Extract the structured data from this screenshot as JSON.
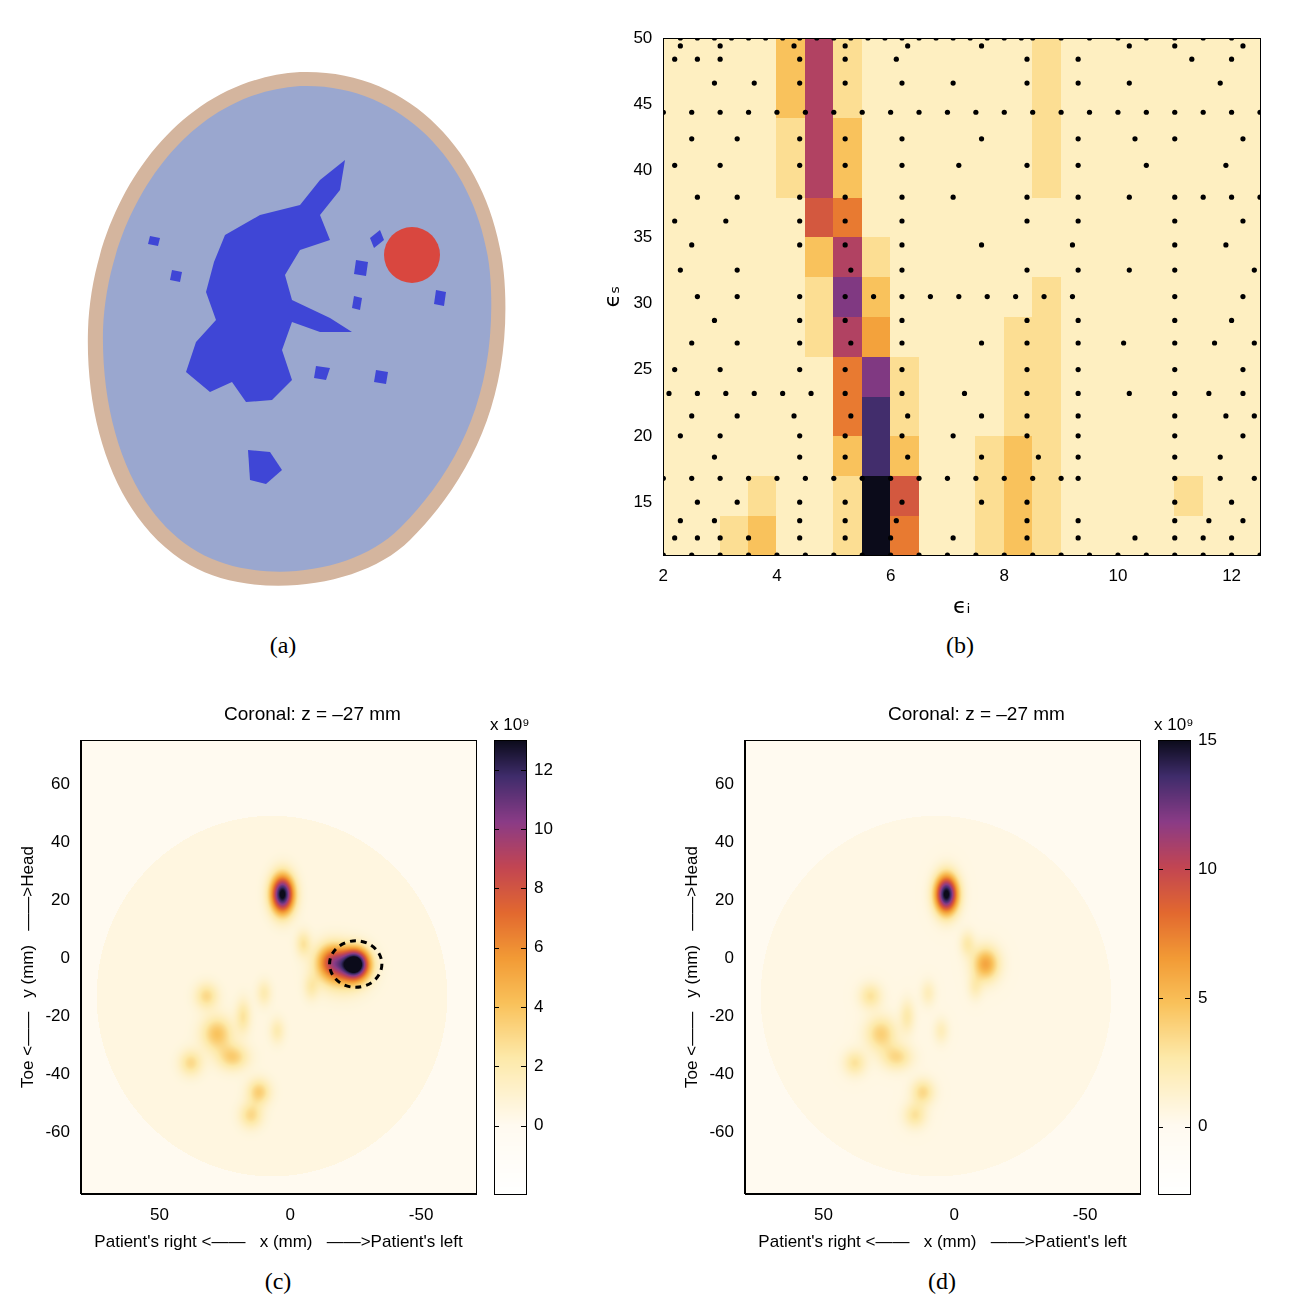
{
  "chart_data": [
    {
      "panel": "(a)",
      "type": "segmentation"
    },
    {
      "panel": "(b)",
      "type": "heatmap",
      "x_label": "ϵᵢ",
      "y_label": "ϵₛ",
      "xlim": [
        2,
        12.5
      ],
      "ylim": [
        11,
        50
      ],
      "xticks": [
        2,
        4,
        6,
        8,
        10,
        12
      ],
      "yticks": [
        15,
        20,
        25,
        30,
        35,
        40,
        45,
        50
      ],
      "heatmap": {
        "x_edges": [
          2,
          2.5,
          3,
          3.5,
          4,
          4.5,
          5,
          5.5,
          6,
          6.5,
          7,
          7.5,
          8,
          8.5,
          9,
          9.5,
          10,
          10.5,
          11,
          11.5,
          12,
          12.5
        ],
        "y_edges": [
          11,
          14,
          17,
          20,
          23,
          26,
          29,
          32,
          35,
          38,
          41,
          44,
          47,
          50
        ],
        "clim": [
          -2,
          10
        ],
        "cells": [
          [
            1,
            1,
            2,
            3,
            1,
            1,
            2,
            10,
            5,
            1,
            1,
            2,
            3,
            2,
            1,
            1,
            1,
            1,
            1,
            1,
            1
          ],
          [
            1,
            1,
            1,
            2,
            1,
            1,
            2,
            10,
            6,
            1,
            1,
            2,
            3,
            2,
            1,
            1,
            1,
            1,
            2,
            1,
            1
          ],
          [
            1,
            1,
            1,
            1,
            1,
            1,
            3,
            9,
            3,
            1,
            1,
            2,
            3,
            2,
            1,
            1,
            1,
            1,
            1,
            1,
            1
          ],
          [
            1,
            1,
            1,
            1,
            1,
            1,
            5,
            9,
            2,
            1,
            1,
            1,
            2,
            2,
            1,
            1,
            1,
            1,
            1,
            1,
            1
          ],
          [
            1,
            1,
            1,
            1,
            1,
            1,
            5,
            8,
            2,
            1,
            1,
            1,
            2,
            2,
            1,
            1,
            1,
            1,
            1,
            1,
            1
          ],
          [
            1,
            1,
            1,
            1,
            1,
            2,
            7,
            4,
            1,
            1,
            1,
            1,
            2,
            2,
            1,
            1,
            1,
            1,
            1,
            1,
            1
          ],
          [
            1,
            1,
            1,
            1,
            1,
            2,
            8,
            3,
            1,
            1,
            1,
            1,
            1,
            2,
            1,
            1,
            1,
            1,
            1,
            1,
            1
          ],
          [
            1,
            1,
            1,
            1,
            1,
            3,
            7,
            2,
            1,
            1,
            1,
            1,
            1,
            1,
            1,
            1,
            1,
            1,
            1,
            1,
            1
          ],
          [
            1,
            1,
            1,
            1,
            1,
            6,
            5,
            1,
            1,
            1,
            1,
            1,
            1,
            1,
            1,
            1,
            1,
            1,
            1,
            1,
            1
          ],
          [
            1,
            1,
            1,
            1,
            2,
            7,
            3,
            1,
            1,
            1,
            1,
            1,
            1,
            2,
            1,
            1,
            1,
            1,
            1,
            1,
            1
          ],
          [
            1,
            1,
            1,
            1,
            2,
            7,
            3,
            1,
            1,
            1,
            1,
            1,
            1,
            2,
            1,
            1,
            1,
            1,
            1,
            1,
            1
          ],
          [
            1,
            1,
            1,
            1,
            3,
            7,
            2,
            1,
            1,
            1,
            1,
            1,
            1,
            2,
            1,
            1,
            1,
            1,
            1,
            1,
            1
          ],
          [
            1,
            1,
            1,
            1,
            3,
            7,
            2,
            1,
            1,
            1,
            1,
            1,
            1,
            2,
            1,
            1,
            1,
            1,
            1,
            1,
            1
          ]
        ]
      },
      "points": {
        "marker": "circle",
        "color": "#000000",
        "rows": [
          {
            "y": 50,
            "x": [
              2.3,
              2.6,
              2.9,
              3.2,
              3.5,
              3.8,
              4.1,
              4.4,
              4.7,
              5.0,
              5.3,
              5.6,
              5.9,
              6.2,
              6.5,
              6.8,
              7.1,
              7.4,
              7.7,
              8.0,
              8.3,
              8.5,
              9.0,
              9.5,
              10.0,
              10.5,
              11.0,
              11.5,
              12.0
            ]
          },
          {
            "y": 49.4,
            "x": [
              2.3,
              3.0,
              4.3,
              5.2,
              6.3,
              7.6,
              10.2,
              11.0,
              12.2
            ]
          },
          {
            "y": 48.4,
            "x": [
              2.2,
              2.6,
              3.0,
              4.4,
              5.2,
              6.1,
              8.4,
              9.3,
              11.3,
              12.0
            ]
          },
          {
            "y": 46.6,
            "x": [
              2.9,
              3.6,
              4.4,
              5.2,
              6.2,
              7.1,
              8.4,
              9.3,
              10.2,
              11.8
            ]
          },
          {
            "y": 44.4,
            "x": [
              2.0,
              2.5,
              3.0,
              3.5,
              4.0,
              4.5,
              5.0,
              5.5,
              6.0,
              6.5,
              7.0,
              7.5,
              8.0,
              8.5,
              9.0,
              9.5,
              10.0,
              10.5,
              11.0,
              11.5,
              12.0,
              12.5
            ]
          },
          {
            "y": 42.4,
            "x": [
              2.5,
              3.3,
              4.4,
              5.2,
              6.2,
              7.6,
              9.3,
              10.3,
              11.0,
              12.2
            ]
          },
          {
            "y": 40.4,
            "x": [
              2.2,
              3.0,
              4.4,
              5.2,
              6.2,
              7.2,
              8.4,
              9.3,
              10.5,
              11.9
            ]
          },
          {
            "y": 38,
            "x": [
              2.6,
              3.3,
              4.4,
              5.2,
              6.2,
              7.1,
              8.4,
              9.3,
              10.2,
              11.0,
              11.5,
              12.0,
              12.5
            ]
          },
          {
            "y": 36.2,
            "x": [
              2.2,
              3.1,
              4.4,
              5.2,
              6.2,
              8.4,
              9.3,
              11.0,
              12.2
            ]
          },
          {
            "y": 34.4,
            "x": [
              2.5,
              4.4,
              5.2,
              6.2,
              7.6,
              9.2,
              11.0,
              11.9
            ]
          },
          {
            "y": 32.5,
            "x": [
              2.3,
              3.3,
              5.3,
              6.2,
              8.4,
              9.3,
              10.2,
              11.0,
              12.4
            ]
          },
          {
            "y": 30.5,
            "x": [
              2.6,
              3.3,
              4.4,
              5.2,
              5.7,
              6.2,
              6.7,
              7.2,
              7.7,
              8.2,
              8.7,
              9.2,
              11.0,
              12.2
            ]
          },
          {
            "y": 28.7,
            "x": [
              2.9,
              4.4,
              5.2,
              6.2,
              8.4,
              9.3,
              11.0,
              12.0
            ]
          },
          {
            "y": 27,
            "x": [
              2.5,
              3.3,
              4.4,
              5.3,
              6.2,
              7.6,
              8.4,
              9.3,
              10.1,
              11.0,
              11.7,
              12.4
            ]
          },
          {
            "y": 25,
            "x": [
              2.2,
              3.0,
              4.4,
              5.2,
              6.2,
              8.4,
              9.3,
              11.0,
              12.2
            ]
          },
          {
            "y": 23.2,
            "x": [
              2.1,
              2.6,
              3.1,
              3.6,
              4.1,
              4.6,
              5.2,
              6.2,
              7.3,
              8.4,
              9.3,
              10.2,
              11.0,
              11.6,
              12.2
            ]
          },
          {
            "y": 21.5,
            "x": [
              2.5,
              3.3,
              4.3,
              5.3,
              6.3,
              7.6,
              8.4,
              9.3,
              11.0,
              11.9,
              12.4
            ]
          },
          {
            "y": 20,
            "x": [
              2.3,
              3.0,
              4.4,
              5.2,
              6.2,
              7.1,
              8.4,
              9.3,
              11.0,
              12.2
            ]
          },
          {
            "y": 18.4,
            "x": [
              2.9,
              4.4,
              5.2,
              6.3,
              7.6,
              8.6,
              9.3,
              11.0,
              11.8
            ]
          },
          {
            "y": 16.8,
            "x": [
              2.0,
              2.5,
              3.0,
              3.5,
              4.0,
              4.5,
              5.0,
              5.5,
              6.0,
              6.5,
              7.0,
              7.5,
              8.0,
              8.5,
              9.0,
              9.3,
              11.0,
              11.8,
              12.4
            ]
          },
          {
            "y": 15,
            "x": [
              2.6,
              3.3,
              4.4,
              5.2,
              6.2,
              7.6,
              8.4,
              11.0,
              12.0
            ]
          },
          {
            "y": 13.6,
            "x": [
              2.3,
              2.9,
              4.4,
              5.2,
              6.1,
              8.4,
              9.3,
              11.0,
              11.6,
              12.2
            ]
          },
          {
            "y": 12.3,
            "x": [
              2.2,
              2.6,
              3.0,
              3.5,
              4.4,
              5.2,
              6.0,
              7.1,
              8.4,
              9.3,
              10.3,
              11.0,
              11.5,
              12.0
            ]
          },
          {
            "y": 11,
            "x": [
              2.0,
              2.5,
              3.0,
              3.5,
              4.0,
              4.5,
              5.0,
              5.5,
              6.0,
              6.5,
              7.0,
              7.5,
              8.0,
              8.5,
              9.0,
              9.5,
              10.0,
              10.5,
              11.0,
              11.5,
              12.0,
              12.5
            ]
          }
        ]
      }
    },
    {
      "panel": "(c)",
      "type": "image",
      "title": "Coronal: z = –27 mm",
      "x_label": "Patient's right <——   x (mm)   ——>Patient's left",
      "y_label": "Toe <——   y (mm)   ——>Head",
      "xlim": [
        80,
        -71
      ],
      "ylim": [
        -81,
        75
      ],
      "xticks": [
        50,
        0,
        -50
      ],
      "yticks": [
        -60,
        -40,
        -20,
        0,
        20,
        40,
        60
      ],
      "colorbar": {
        "lim": [
          -2.3,
          13
        ],
        "ticks": [
          0,
          2,
          4,
          6,
          8,
          10,
          12
        ],
        "label": "x 10⁹"
      },
      "region": {
        "x": 7,
        "y": -13,
        "rx": 67,
        "ry": 62,
        "value": 0.5
      },
      "blobs": [
        {
          "x": 3,
          "y": 22,
          "value": 13,
          "sx": 3,
          "sy": 4.5
        },
        {
          "x": -25,
          "y": -2,
          "value": 13,
          "sx": 3.5,
          "sy": 3.5
        },
        {
          "x": -16,
          "y": -1,
          "value": 6,
          "sx": 4,
          "sy": 4
        },
        {
          "x": -20,
          "y": -4,
          "value": 4,
          "sx": 6,
          "sy": 5
        },
        {
          "x": 32,
          "y": -13,
          "value": 2.5,
          "sx": 3,
          "sy": 3
        },
        {
          "x": 28,
          "y": -26,
          "value": 3.5,
          "sx": 4,
          "sy": 4
        },
        {
          "x": 22,
          "y": -34,
          "value": 3,
          "sx": 4,
          "sy": 3
        },
        {
          "x": 38,
          "y": -36,
          "value": 2.5,
          "sx": 3,
          "sy": 3
        },
        {
          "x": 12,
          "y": -46,
          "value": 3,
          "sx": 3,
          "sy": 3
        },
        {
          "x": 15,
          "y": -54,
          "value": 2.5,
          "sx": 3,
          "sy": 3
        },
        {
          "x": 18,
          "y": -20,
          "value": 2,
          "sx": 2,
          "sy": 4
        },
        {
          "x": 10,
          "y": -12,
          "value": 1.5,
          "sx": 2,
          "sy": 3
        },
        {
          "x": -5,
          "y": 5,
          "value": 2,
          "sx": 2,
          "sy": 3
        },
        {
          "x": -8,
          "y": -10,
          "value": 1.5,
          "sx": 2,
          "sy": 3
        },
        {
          "x": 5,
          "y": -25,
          "value": 1.5,
          "sx": 2,
          "sy": 3
        }
      ],
      "highlight": {
        "x": -25,
        "y": -2,
        "rx": 10,
        "ry": 8
      }
    },
    {
      "panel": "(d)",
      "type": "image",
      "title": "Coronal: z = –27 mm",
      "x_label": "Patient's right <——   x (mm)   ——>Patient's left",
      "y_label": "Toe <——   y (mm)   ——>Head",
      "xlim": [
        80,
        -71
      ],
      "ylim": [
        -81,
        75
      ],
      "xticks": [
        50,
        0,
        -50
      ],
      "yticks": [
        -60,
        -40,
        -20,
        0,
        20,
        40,
        60
      ],
      "colorbar": {
        "lim": [
          -2.6,
          15
        ],
        "ticks": [
          0,
          5,
          10,
          15
        ],
        "label": "x 10⁹"
      },
      "region": {
        "x": 7,
        "y": -13,
        "rx": 67,
        "ry": 62,
        "value": 0.5
      },
      "blobs": [
        {
          "x": 3,
          "y": 22,
          "value": 15,
          "sx": 3,
          "sy": 4.5
        },
        {
          "x": -12,
          "y": -2,
          "value": 5.5,
          "sx": 3.5,
          "sy": 4
        },
        {
          "x": 32,
          "y": -13,
          "value": 2.5,
          "sx": 3,
          "sy": 3
        },
        {
          "x": 28,
          "y": -26,
          "value": 3.5,
          "sx": 4,
          "sy": 4
        },
        {
          "x": 22,
          "y": -34,
          "value": 3,
          "sx": 4,
          "sy": 3
        },
        {
          "x": 38,
          "y": -36,
          "value": 2.5,
          "sx": 3,
          "sy": 3
        },
        {
          "x": 12,
          "y": -46,
          "value": 3,
          "sx": 3,
          "sy": 3
        },
        {
          "x": 15,
          "y": -54,
          "value": 2.5,
          "sx": 3,
          "sy": 3
        },
        {
          "x": 18,
          "y": -20,
          "value": 2,
          "sx": 2,
          "sy": 4
        },
        {
          "x": 10,
          "y": -12,
          "value": 1.5,
          "sx": 2,
          "sy": 3
        },
        {
          "x": -5,
          "y": 5,
          "value": 2,
          "sx": 2,
          "sy": 3
        },
        {
          "x": -8,
          "y": -10,
          "value": 1.5,
          "sx": 2,
          "sy": 3
        },
        {
          "x": 5,
          "y": -25,
          "value": 1.5,
          "sx": 2,
          "sy": 3
        }
      ]
    }
  ]
}
